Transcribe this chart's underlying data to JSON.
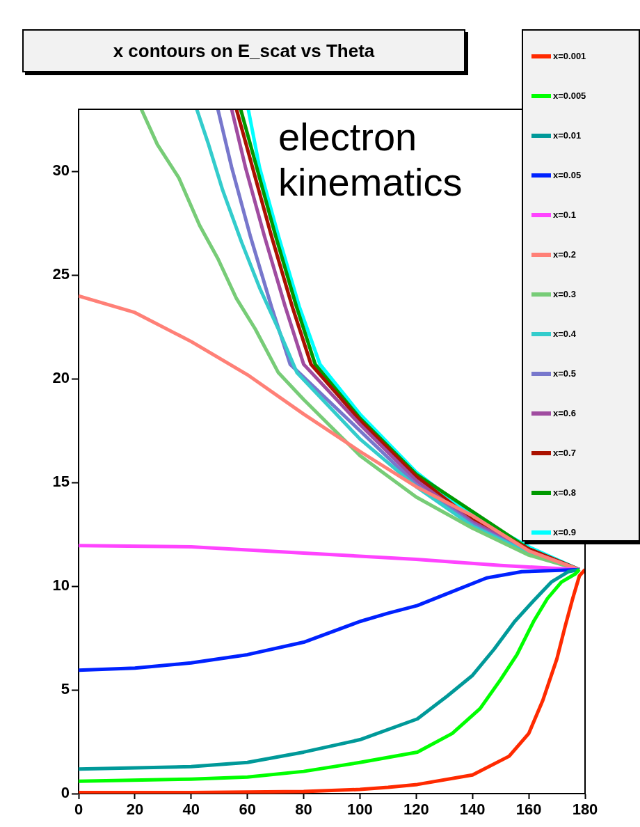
{
  "chart_data": {
    "type": "line",
    "title": "x contours on E_scat vs Theta",
    "annotations": [
      "electron\nkinematics"
    ],
    "xlim": [
      0,
      180
    ],
    "xticks": [
      0,
      20,
      40,
      60,
      80,
      100,
      120,
      140,
      160,
      180
    ],
    "ylim": [
      0,
      33
    ],
    "yticks": [
      0,
      5,
      10,
      15,
      20,
      25,
      30
    ],
    "grid": false,
    "legend": "top right",
    "marker": "none",
    "line_style": "solid",
    "series": [
      {
        "name": "x=0.001",
        "color": "#ff2a00",
        "x": [
          0,
          40,
          80,
          100,
          110,
          120.4,
          140,
          153,
          160,
          165,
          170,
          173,
          175.6,
          178,
          180
        ],
        "values": [
          0.05,
          0.05,
          0.1,
          0.2,
          0.3,
          0.44,
          0.9,
          1.8,
          2.9,
          4.5,
          6.5,
          8.1,
          9.4,
          10.5,
          10.8
        ]
      },
      {
        "name": "x=0.005",
        "color": "#00ff00",
        "x": [
          0,
          40,
          60,
          80,
          100,
          120.4,
          132.8,
          142.7,
          150,
          155.8,
          161.7,
          166.6,
          171.6,
          176.6,
          178
        ],
        "values": [
          0.6,
          0.7,
          0.8,
          1.07,
          1.5,
          2.0,
          2.9,
          4.1,
          5.5,
          6.7,
          8.3,
          9.4,
          10.2,
          10.6,
          10.8
        ]
      },
      {
        "name": "x=0.01",
        "color": "#009999",
        "x": [
          0,
          40,
          60,
          80,
          100,
          120.4,
          131,
          140,
          147.6,
          155,
          161.7,
          168,
          174,
          178
        ],
        "values": [
          1.18,
          1.3,
          1.5,
          2.0,
          2.6,
          3.6,
          4.7,
          5.7,
          6.95,
          8.3,
          9.3,
          10.2,
          10.7,
          10.8
        ]
      },
      {
        "name": "x=0.05",
        "color": "#0022ff",
        "x": [
          0,
          20,
          40,
          60,
          80,
          100,
          110,
          120.4,
          132.8,
          145,
          157.5,
          178
        ],
        "values": [
          5.95,
          6.05,
          6.3,
          6.7,
          7.3,
          8.3,
          8.7,
          9.07,
          9.74,
          10.4,
          10.7,
          10.8
        ]
      },
      {
        "name": "x=0.1",
        "color": "#ff44ff",
        "x": [
          0,
          40,
          80,
          120,
          150,
          178
        ],
        "values": [
          11.96,
          11.9,
          11.6,
          11.3,
          11.0,
          10.8
        ]
      },
      {
        "name": "x=0.2",
        "color": "#ff8077",
        "x": [
          0,
          20,
          40,
          60,
          80,
          100,
          120,
          140,
          160,
          178
        ],
        "values": [
          24.0,
          23.2,
          21.8,
          20.2,
          18.3,
          16.5,
          14.8,
          13.4,
          11.7,
          10.8
        ]
      },
      {
        "name": "x=0.3",
        "color": "#77cc77",
        "x": [
          22.3,
          28,
          35.6,
          43,
          49.5,
          56,
          62.8,
          71,
          80,
          100,
          120,
          140,
          160,
          178
        ],
        "values": [
          33,
          31.3,
          29.7,
          27.4,
          25.8,
          23.9,
          22.4,
          20.3,
          19.0,
          16.3,
          14.3,
          12.8,
          11.5,
          10.8
        ]
      },
      {
        "name": "x=0.4",
        "color": "#33cccc",
        "x": [
          42,
          46.2,
          51.2,
          57.9,
          64.3,
          71,
          77.6,
          100,
          120,
          140,
          160,
          178
        ],
        "values": [
          33,
          31.3,
          29.1,
          26.6,
          24.4,
          22.4,
          20.3,
          17.1,
          14.8,
          12.9,
          11.6,
          10.8
        ]
      },
      {
        "name": "x=0.5",
        "color": "#7777cc",
        "x": [
          49.5,
          54.4,
          61,
          68.5,
          75.2,
          100,
          120,
          140,
          160,
          178
        ],
        "values": [
          33,
          30.2,
          26.9,
          23.5,
          20.7,
          17.5,
          14.9,
          13.0,
          11.6,
          10.8
        ]
      },
      {
        "name": "x=0.6",
        "color": "#a04ca0",
        "x": [
          54.4,
          59.3,
          66,
          73.4,
          80,
          100,
          120,
          140,
          160,
          178
        ],
        "values": [
          33,
          30.2,
          26.9,
          23.5,
          20.7,
          17.8,
          15.1,
          13.1,
          11.7,
          10.8
        ]
      },
      {
        "name": "x=0.7",
        "color": "#aa1100",
        "x": [
          56.1,
          61.8,
          68.5,
          75.9,
          82.6,
          100,
          120,
          140,
          160,
          178
        ],
        "values": [
          33,
          30.2,
          26.9,
          23.5,
          20.7,
          18.0,
          15.3,
          13.2,
          11.8,
          10.8
        ]
      },
      {
        "name": "x=0.8",
        "color": "#009900",
        "x": [
          57.6,
          63.3,
          70,
          77.4,
          84.1,
          100,
          120,
          140,
          160,
          178
        ],
        "values": [
          33,
          30.2,
          26.9,
          23.5,
          20.7,
          18.1,
          15.4,
          null,
          11.8,
          10.8
        ]
      },
      {
        "name": "x=0.9",
        "color": "#00ffff",
        "x": [
          60.3,
          64.3,
          71,
          78.4,
          85.8,
          100,
          120,
          140,
          160,
          178
        ],
        "values": [
          33,
          30.2,
          26.9,
          23.5,
          20.7,
          18.3,
          15.5,
          13.4,
          11.9,
          10.8
        ]
      }
    ]
  }
}
